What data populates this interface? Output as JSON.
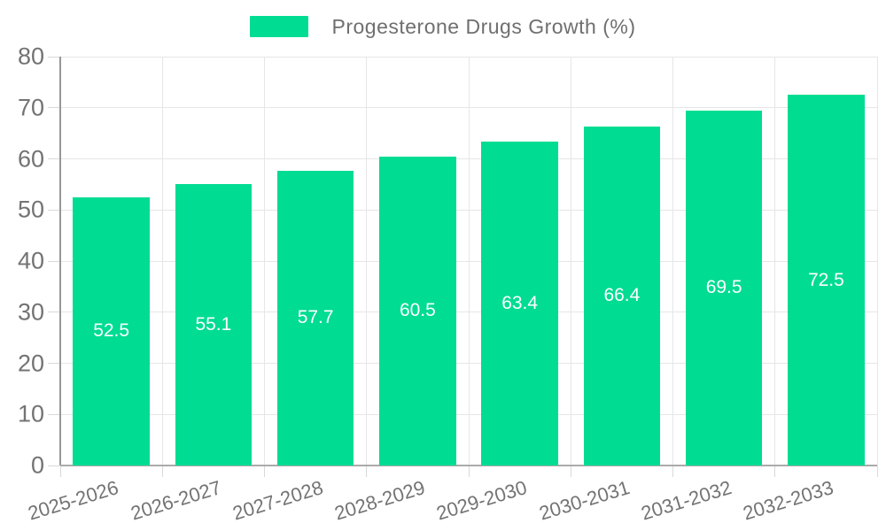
{
  "legend": {
    "label": "Progesterone Drugs Growth (%)"
  },
  "colors": {
    "bar": "#00dc92",
    "grid": "#e6e6e6",
    "axis_y": "#979797",
    "axis_x": "#ababab",
    "tick": "#d9d9d9",
    "axis_text": "#737373",
    "legend_text": "#6f6f6f",
    "value_text": "#ffffff",
    "background": "#ffffff"
  },
  "chart_data": {
    "type": "bar",
    "title": "",
    "xlabel": "",
    "ylabel": "",
    "series_name": "Progesterone Drugs Growth (%)",
    "categories": [
      "2025-2026",
      "2026-2027",
      "2027-2028",
      "2028-2029",
      "2029-2030",
      "2030-2031",
      "2031-2032",
      "2032-2033"
    ],
    "values": [
      52.5,
      55.1,
      57.7,
      60.5,
      63.4,
      66.4,
      69.5,
      72.5
    ],
    "ylim": [
      0,
      80
    ],
    "ytick_step": 10,
    "yticks": [
      0,
      10,
      20,
      30,
      40,
      50,
      60,
      70,
      80
    ],
    "grid": true,
    "legend_position": "top-center",
    "value_labels": "inside-center",
    "bar_width_ratio": 0.75,
    "x_label_rotation_deg": -17
  }
}
